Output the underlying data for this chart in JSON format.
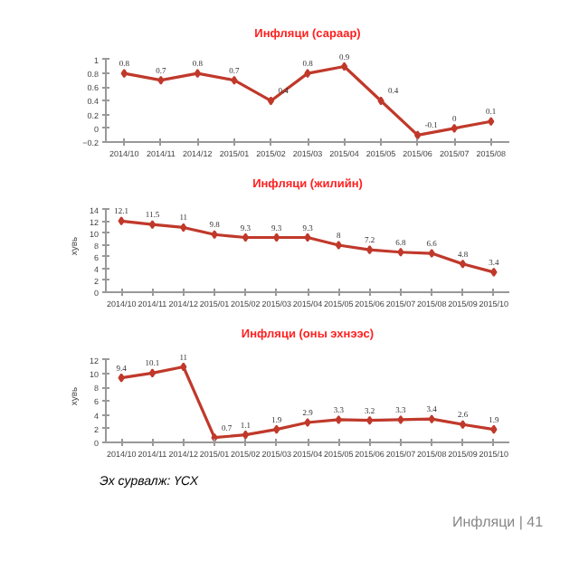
{
  "chart_data": [
    {
      "type": "line",
      "title": "Инфляци (сараар)",
      "categories": [
        "2014/10",
        "2014/11",
        "2014/12",
        "2015/01",
        "2015/02",
        "2015/03",
        "2015/04",
        "2015/05",
        "2015/06",
        "2015/07",
        "2015/08"
      ],
      "series": [
        {
          "color": "#c0392b",
          "values": [
            0.8,
            0.7,
            0.8,
            0.7,
            0.4,
            0.8,
            0.9,
            0.4,
            -0.1,
            0,
            0.1
          ]
        }
      ],
      "ylim": [
        -0.2,
        1
      ],
      "yticks": [
        -0.2,
        0,
        0.2,
        0.4,
        0.6,
        0.8,
        1
      ],
      "data_labels": true,
      "marker": "diamond",
      "grid": false
    },
    {
      "type": "line",
      "title": "Инфляци (жилийн)",
      "ylabel": "хувь",
      "categories": [
        "2014/10",
        "2014/11",
        "2014/12",
        "2015/01",
        "2015/02",
        "2015/03",
        "2015/04",
        "2015/05",
        "2015/06",
        "2015/07",
        "2015/08",
        "2015/09",
        "2015/10"
      ],
      "series": [
        {
          "color": "#c0392b",
          "values": [
            12.1,
            11.5,
            11,
            9.8,
            9.3,
            9.3,
            9.3,
            8,
            7.2,
            6.8,
            6.6,
            4.8,
            3.4
          ]
        }
      ],
      "ylim": [
        0,
        14
      ],
      "yticks": [
        0,
        2,
        4,
        6,
        8,
        10,
        12,
        14
      ],
      "data_labels": true,
      "marker": "diamond",
      "grid": false
    },
    {
      "type": "line",
      "title": "Инфляци (оны эхнээс)",
      "ylabel": "хувь",
      "categories": [
        "2014/10",
        "2014/11",
        "2014/12",
        "2015/01",
        "2015/02",
        "2015/03",
        "2015/04",
        "2015/05",
        "2015/06",
        "2015/07",
        "2015/08",
        "2015/09",
        "2015/10"
      ],
      "series": [
        {
          "color": "#c0392b",
          "values": [
            9.4,
            10.1,
            11,
            0.7,
            1.1,
            1.9,
            2.9,
            3.3,
            3.2,
            3.3,
            3.4,
            2.6,
            1.9
          ]
        }
      ],
      "ylim": [
        0,
        12
      ],
      "yticks": [
        0,
        2,
        4,
        6,
        8,
        10,
        12
      ],
      "data_labels": true,
      "marker": "diamond",
      "grid": false,
      "annotations": [
        "Эх сурвалж: ҮСХ",
        "Инфляци | 41"
      ]
    }
  ]
}
